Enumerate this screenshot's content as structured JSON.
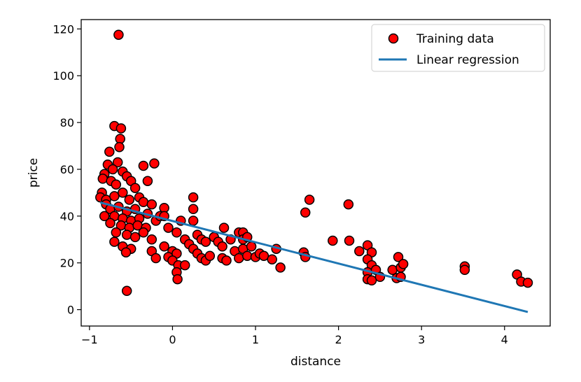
{
  "chart_data": {
    "type": "scatter",
    "xlabel": "distance",
    "ylabel": "price",
    "xlim": [
      -1.1,
      4.55
    ],
    "ylim": [
      -7,
      124
    ],
    "xticks": [
      -1,
      0,
      1,
      2,
      3,
      4
    ],
    "xtick_labels": [
      "−1",
      "0",
      "1",
      "2",
      "3",
      "4"
    ],
    "yticks": [
      0,
      20,
      40,
      60,
      80,
      100,
      120
    ],
    "ytick_labels": [
      "0",
      "20",
      "40",
      "60",
      "80",
      "100",
      "120"
    ],
    "grid": false,
    "legend_position": "top-right",
    "colors": {
      "points": "#ff0000",
      "point_edge": "#000000",
      "line": "#1f77b4"
    },
    "series": [
      {
        "name": "Training data",
        "kind": "scatter",
        "points": [
          [
            -0.65,
            117.5
          ],
          [
            -0.7,
            78.5
          ],
          [
            -0.62,
            77.5
          ],
          [
            -0.63,
            73
          ],
          [
            -0.64,
            69.5
          ],
          [
            -0.76,
            67.5
          ],
          [
            -0.66,
            63
          ],
          [
            -0.78,
            62
          ],
          [
            -0.72,
            60
          ],
          [
            -0.22,
            62.5
          ],
          [
            -0.35,
            61.5
          ],
          [
            -0.82,
            58
          ],
          [
            -0.6,
            59
          ],
          [
            -0.55,
            57
          ],
          [
            -0.5,
            55
          ],
          [
            -0.84,
            56
          ],
          [
            -0.74,
            55
          ],
          [
            -0.68,
            53.5
          ],
          [
            -0.3,
            55
          ],
          [
            -0.45,
            52
          ],
          [
            -0.85,
            50
          ],
          [
            -0.87,
            48
          ],
          [
            -0.8,
            47
          ],
          [
            -0.7,
            48.5
          ],
          [
            -0.6,
            50
          ],
          [
            -0.52,
            47
          ],
          [
            -0.4,
            48
          ],
          [
            -0.35,
            46
          ],
          [
            -0.25,
            45
          ],
          [
            -0.8,
            45
          ],
          [
            -0.75,
            43
          ],
          [
            -0.65,
            44
          ],
          [
            -0.55,
            42
          ],
          [
            -0.45,
            43
          ],
          [
            -0.3,
            41
          ],
          [
            -0.82,
            40
          ],
          [
            -0.7,
            40
          ],
          [
            -0.6,
            39
          ],
          [
            -0.5,
            38
          ],
          [
            -0.4,
            39
          ],
          [
            -0.75,
            37
          ],
          [
            -0.62,
            36
          ],
          [
            -0.52,
            35
          ],
          [
            -0.42,
            36
          ],
          [
            -0.32,
            35
          ],
          [
            -0.2,
            38
          ],
          [
            -0.15,
            40
          ],
          [
            -0.68,
            33
          ],
          [
            -0.55,
            32
          ],
          [
            -0.45,
            31
          ],
          [
            -0.35,
            33
          ],
          [
            -0.25,
            30
          ],
          [
            -0.7,
            29
          ],
          [
            -0.6,
            27
          ],
          [
            -0.5,
            26
          ],
          [
            -0.56,
            24.5
          ],
          [
            -0.25,
            25
          ],
          [
            -0.2,
            22
          ],
          [
            -0.1,
            43.5
          ],
          [
            -0.1,
            40
          ],
          [
            -0.05,
            35
          ],
          [
            -0.1,
            27
          ],
          [
            0.0,
            25
          ],
          [
            -0.05,
            22.5
          ],
          [
            0.05,
            24
          ],
          [
            0.0,
            21
          ],
          [
            0.07,
            19
          ],
          [
            0.05,
            16
          ],
          [
            0.06,
            13
          ],
          [
            0.15,
            19
          ],
          [
            0.1,
            38
          ],
          [
            0.05,
            33
          ],
          [
            0.15,
            30
          ],
          [
            0.2,
            28
          ],
          [
            0.25,
            26
          ],
          [
            0.25,
            48
          ],
          [
            0.25,
            43
          ],
          [
            0.25,
            38
          ],
          [
            0.3,
            32
          ],
          [
            0.35,
            30
          ],
          [
            0.4,
            29
          ],
          [
            0.3,
            24
          ],
          [
            0.35,
            22
          ],
          [
            0.4,
            21
          ],
          [
            0.45,
            23
          ],
          [
            0.5,
            31
          ],
          [
            0.55,
            29
          ],
          [
            0.6,
            27
          ],
          [
            0.6,
            22
          ],
          [
            0.65,
            21
          ],
          [
            0.62,
            35
          ],
          [
            0.7,
            30
          ],
          [
            0.75,
            25
          ],
          [
            0.8,
            33
          ],
          [
            0.85,
            33
          ],
          [
            0.85,
            30
          ],
          [
            0.9,
            31
          ],
          [
            0.85,
            26
          ],
          [
            0.8,
            22
          ],
          [
            0.9,
            23
          ],
          [
            0.95,
            27
          ],
          [
            1.0,
            22.5
          ],
          [
            1.05,
            24
          ],
          [
            1.1,
            23
          ],
          [
            1.2,
            21.5
          ],
          [
            1.25,
            26
          ],
          [
            1.3,
            18
          ],
          [
            -0.55,
            8
          ],
          [
            1.58,
            24.5
          ],
          [
            1.6,
            22.5
          ],
          [
            1.6,
            41.5
          ],
          [
            1.65,
            47
          ],
          [
            1.93,
            29.5
          ],
          [
            2.12,
            45
          ],
          [
            2.13,
            29.5
          ],
          [
            2.25,
            25
          ],
          [
            2.35,
            27.5
          ],
          [
            2.4,
            24.5
          ],
          [
            2.35,
            21.5
          ],
          [
            2.4,
            19
          ],
          [
            2.35,
            16
          ],
          [
            2.35,
            13
          ],
          [
            2.4,
            12.5
          ],
          [
            2.45,
            17
          ],
          [
            2.5,
            14
          ],
          [
            2.65,
            17
          ],
          [
            2.72,
            22.5
          ],
          [
            2.75,
            18
          ],
          [
            2.78,
            19.5
          ],
          [
            2.7,
            13.5
          ],
          [
            2.75,
            14
          ],
          [
            3.52,
            18.5
          ],
          [
            3.52,
            17
          ],
          [
            4.15,
            15
          ],
          [
            4.2,
            12
          ],
          [
            4.28,
            11.5
          ]
        ]
      },
      {
        "name": "Linear regression",
        "kind": "line",
        "points": [
          [
            -0.87,
            45.8
          ],
          [
            4.28,
            -1.0
          ]
        ]
      }
    ]
  }
}
